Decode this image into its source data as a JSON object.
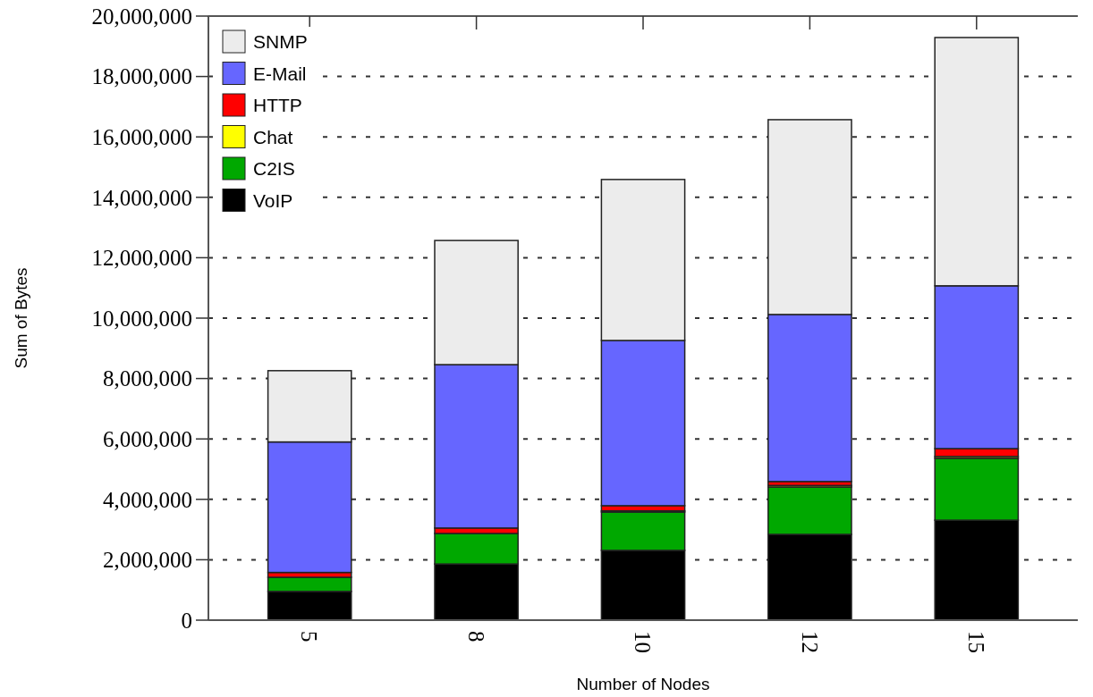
{
  "chart_data": {
    "type": "bar",
    "stacked": true,
    "xlabel": "Number of Nodes",
    "ylabel": "Sum of Bytes",
    "categories": [
      "5",
      "8",
      "10",
      "12",
      "15"
    ],
    "series": [
      {
        "name": "VoIP",
        "color": "#000000",
        "values": [
          950000,
          1860000,
          2310000,
          2840000,
          3310000
        ]
      },
      {
        "name": "C2IS",
        "color": "#00a800",
        "values": [
          470000,
          1010000,
          1270000,
          1570000,
          2050000
        ]
      },
      {
        "name": "Chat",
        "color": "#ffff00",
        "values": [
          null,
          null,
          40000,
          50000,
          60000
        ]
      },
      {
        "name": "HTTP",
        "color": "#ff0000",
        "values": [
          160000,
          180000,
          170000,
          130000,
          260000
        ]
      },
      {
        "name": "E-Mail",
        "color": "#6666ff",
        "values": [
          4320000,
          5410000,
          5470000,
          5530000,
          5390000
        ]
      },
      {
        "name": "SNMP",
        "color": "#ececec",
        "values": [
          2360000,
          4110000,
          5330000,
          6450000,
          8220000
        ]
      }
    ],
    "ylim": [
      0,
      20000000
    ],
    "yticks": [
      {
        "value": 0,
        "label": "0"
      },
      {
        "value": 2000000,
        "label": "2,000,000"
      },
      {
        "value": 4000000,
        "label": "4,000,000"
      },
      {
        "value": 6000000,
        "label": "6,000,000"
      },
      {
        "value": 8000000,
        "label": "8,000,000"
      },
      {
        "value": 10000000,
        "label": "10,000,000"
      },
      {
        "value": 12000000,
        "label": "12,000,000"
      },
      {
        "value": 14000000,
        "label": "14,000,000"
      },
      {
        "value": 16000000,
        "label": "16,000,000"
      },
      {
        "value": 18000000,
        "label": "18,000,000"
      },
      {
        "value": 20000000,
        "label": "20,000,000"
      }
    ],
    "grid": "y",
    "legend": "top left"
  }
}
